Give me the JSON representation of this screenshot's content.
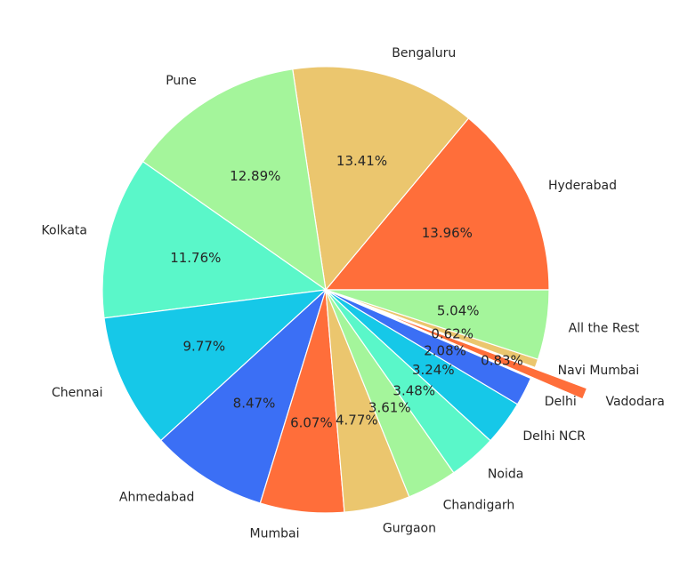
{
  "chart_data": {
    "type": "pie",
    "title": "",
    "start_angle_deg": 0,
    "direction": "counterclockwise",
    "slices": [
      {
        "label": "Hyderabad",
        "value": 13.96,
        "pct_text": "13.96%",
        "color": "#ff6e3a",
        "explode": 0
      },
      {
        "label": "Bengaluru",
        "value": 13.41,
        "pct_text": "13.41%",
        "color": "#ebc66e",
        "explode": 0
      },
      {
        "label": "Pune",
        "value": 12.89,
        "pct_text": "12.89%",
        "color": "#a4f59b",
        "explode": 0
      },
      {
        "label": "Kolkata",
        "value": 11.76,
        "pct_text": "11.76%",
        "color": "#5af7c9",
        "explode": 0
      },
      {
        "label": "Chennai",
        "value": 9.77,
        "pct_text": "9.77%",
        "color": "#16c8e8",
        "explode": 0
      },
      {
        "label": "Ahmedabad",
        "value": 8.47,
        "pct_text": "8.47%",
        "color": "#3b6ff5",
        "explode": 0
      },
      {
        "label": "Mumbai",
        "value": 6.07,
        "pct_text": "6.07%",
        "color": "#ff6e3a",
        "explode": 0
      },
      {
        "label": "Gurgaon",
        "value": 4.77,
        "pct_text": "4.77%",
        "color": "#ebc66e",
        "explode": 0
      },
      {
        "label": "Chandigarh",
        "value": 3.61,
        "pct_text": "3.61%",
        "color": "#a4f59b",
        "explode": 0
      },
      {
        "label": "Noida",
        "value": 3.48,
        "pct_text": "3.48%",
        "color": "#5af7c9",
        "explode": 0
      },
      {
        "label": "Delhi NCR",
        "value": 3.24,
        "pct_text": "3.24%",
        "color": "#16c8e8",
        "explode": 0
      },
      {
        "label": "Delhi",
        "value": 2.08,
        "pct_text": "2.08%",
        "color": "#3b6ff5",
        "explode": 0
      },
      {
        "label": "Vadodara",
        "value": 0.83,
        "pct_text": "0.83%",
        "color": "#ff6e3a",
        "explode": 0.25
      },
      {
        "label": "Navi Mumbai",
        "value": 0.62,
        "pct_text": "0.62%",
        "color": "#ebc66e",
        "explode": 0
      },
      {
        "label": "All the Rest",
        "value": 5.04,
        "pct_text": "5.04%",
        "color": "#a4f59b",
        "explode": 0
      }
    ]
  }
}
